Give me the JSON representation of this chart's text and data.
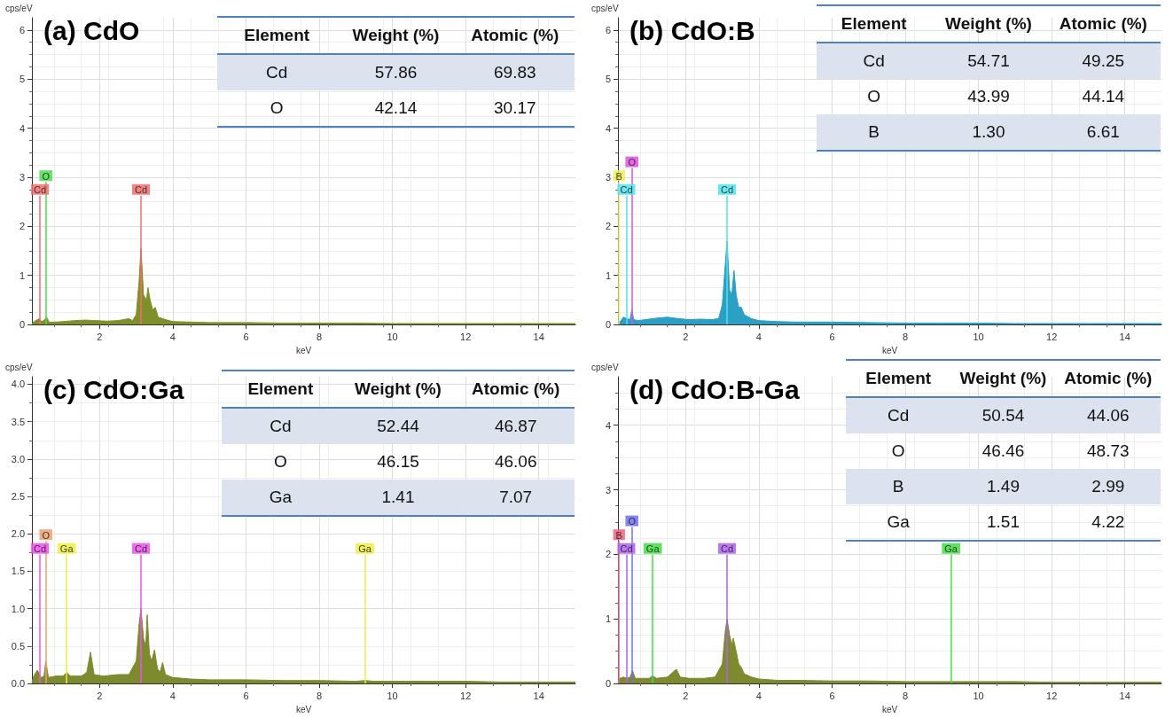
{
  "chart_data": [
    {
      "type": "area",
      "title": "(a) CdO",
      "xlabel": "keV",
      "ylabel": "cps/eV",
      "xlim": [
        0.15,
        15
      ],
      "xticks": [
        2,
        4,
        6,
        8,
        10,
        12,
        14
      ],
      "ylim": [
        0,
        6.25
      ],
      "yticks": [
        0,
        1,
        2,
        3,
        4,
        5,
        6
      ],
      "grid": true,
      "series": [
        {
          "color": "#7f8f2a",
          "x": [
            0.15,
            0.25,
            0.35,
            0.42,
            0.5,
            0.55,
            0.62,
            0.8,
            1.0,
            1.3,
            1.6,
            1.9,
            2.2,
            2.5,
            2.8,
            2.9,
            3.0,
            3.08,
            3.13,
            3.2,
            3.28,
            3.32,
            3.38,
            3.45,
            3.52,
            3.6,
            3.8,
            4.0,
            4.5,
            5,
            6,
            7,
            8,
            9,
            10,
            11,
            12,
            13,
            14,
            15
          ],
          "values": [
            0.02,
            0.08,
            0.12,
            0.06,
            0.1,
            0.15,
            0.05,
            0.05,
            0.06,
            0.08,
            0.09,
            0.08,
            0.07,
            0.08,
            0.12,
            0.08,
            0.2,
            0.9,
            1.55,
            0.6,
            0.5,
            0.75,
            0.5,
            0.3,
            0.35,
            0.15,
            0.1,
            0.06,
            0.05,
            0.04,
            0.04,
            0.03,
            0.03,
            0.03,
            0.02,
            0.02,
            0.02,
            0.02,
            0.02,
            0.02
          ]
        }
      ],
      "ref_lines": [
        {
          "axis": "x",
          "value": 0.37,
          "label": "Cd",
          "color": "#f26d6d"
        },
        {
          "axis": "x",
          "value": 0.53,
          "label": "O",
          "color": "#4cdc4c"
        },
        {
          "axis": "x",
          "value": 3.13,
          "label": "Cd",
          "color": "#f26d6d"
        }
      ],
      "annotations": [
        "Element",
        "Weight (%)",
        "Atomic (%)",
        "Cd",
        "57.86",
        "69.83",
        "O",
        "42.14",
        "30.17"
      ]
    },
    {
      "type": "area",
      "title": "(b) CdO:B",
      "xlabel": "keV",
      "ylabel": "cps/eV",
      "xlim": [
        0.15,
        15
      ],
      "xticks": [
        2,
        4,
        6,
        8,
        10,
        12,
        14
      ],
      "ylim": [
        0,
        6.25
      ],
      "yticks": [
        0,
        1,
        2,
        3,
        4,
        5,
        6
      ],
      "grid": true,
      "series": [
        {
          "color": "#2b9fc4",
          "x": [
            0.15,
            0.2,
            0.3,
            0.4,
            0.48,
            0.53,
            0.58,
            0.7,
            0.9,
            1.2,
            1.5,
            1.8,
            2.1,
            2.4,
            2.7,
            2.9,
            3.0,
            3.08,
            3.13,
            3.2,
            3.26,
            3.32,
            3.38,
            3.45,
            3.52,
            3.6,
            3.8,
            4.0,
            4.5,
            5,
            6,
            7,
            8,
            9,
            10,
            11,
            12,
            13,
            14,
            15
          ],
          "values": [
            0.02,
            0.05,
            0.15,
            0.12,
            0.1,
            0.3,
            0.1,
            0.08,
            0.1,
            0.13,
            0.15,
            0.12,
            0.1,
            0.11,
            0.1,
            0.12,
            0.4,
            1.2,
            1.7,
            0.7,
            0.6,
            1.1,
            0.6,
            0.35,
            0.35,
            0.2,
            0.12,
            0.08,
            0.06,
            0.05,
            0.05,
            0.04,
            0.03,
            0.03,
            0.03,
            0.02,
            0.02,
            0.02,
            0.02,
            0.02
          ]
        }
      ],
      "ref_lines": [
        {
          "axis": "x",
          "value": 0.38,
          "label": "Cd",
          "color": "#4fe4ec"
        },
        {
          "axis": "x",
          "value": 0.18,
          "label": "B",
          "color": "#eeee55"
        },
        {
          "axis": "x",
          "value": 0.53,
          "label": "O",
          "color": "#e050e0"
        },
        {
          "axis": "x",
          "value": 3.13,
          "label": "Cd",
          "color": "#4fe4ec"
        }
      ],
      "annotations": [
        "Element",
        "Weight (%)",
        "Atomic (%)",
        "Cd",
        "54.71",
        "49.25",
        "O",
        "43.99",
        "44.14",
        "B",
        "1.30",
        "6.61"
      ]
    },
    {
      "type": "area",
      "title": "(c) CdO:Ga",
      "xlabel": "keV",
      "ylabel": "cps/eV",
      "xlim": [
        0.15,
        15
      ],
      "xticks": [
        2,
        4,
        6,
        8,
        10,
        12,
        14
      ],
      "ylim": [
        0,
        4.1
      ],
      "yticks": [
        {
          "value": 0,
          "label": "0.0"
        },
        {
          "value": 0.5,
          "label": "0.5"
        },
        {
          "value": 1,
          "label": "1.0"
        },
        {
          "value": 1.5,
          "label": "1.5"
        },
        {
          "value": 2,
          "label": "2.0"
        },
        {
          "value": 2.5,
          "label": "2.5"
        },
        {
          "value": 3,
          "label": "3.0"
        },
        {
          "value": 3.5,
          "label": "3.5"
        },
        {
          "value": 4,
          "label": "4.0"
        }
      ],
      "grid": true,
      "series": [
        {
          "color": "#7d8a2e",
          "x": [
            0.15,
            0.2,
            0.3,
            0.4,
            0.48,
            0.53,
            0.6,
            0.8,
            1.0,
            1.1,
            1.2,
            1.5,
            1.65,
            1.75,
            1.85,
            2.1,
            2.5,
            2.8,
            3.0,
            3.08,
            3.13,
            3.2,
            3.26,
            3.3,
            3.36,
            3.42,
            3.5,
            3.58,
            3.65,
            3.72,
            3.8,
            4.0,
            4.5,
            5,
            6,
            7,
            8,
            9,
            9.25,
            9.5,
            10,
            11,
            12,
            13,
            14,
            15
          ],
          "values": [
            0.02,
            0.1,
            0.18,
            0.08,
            0.1,
            0.3,
            0.08,
            0.1,
            0.1,
            0.15,
            0.1,
            0.1,
            0.15,
            0.42,
            0.12,
            0.1,
            0.12,
            0.12,
            0.3,
            0.8,
            1.0,
            0.6,
            0.5,
            0.92,
            0.4,
            0.3,
            0.45,
            0.2,
            0.15,
            0.28,
            0.12,
            0.08,
            0.06,
            0.05,
            0.05,
            0.04,
            0.04,
            0.03,
            0.04,
            0.03,
            0.03,
            0.03,
            0.03,
            0.02,
            0.02,
            0.02
          ]
        }
      ],
      "ref_lines": [
        {
          "axis": "x",
          "value": 0.37,
          "label": "Cd",
          "color": "#ee50ee"
        },
        {
          "axis": "x",
          "value": 0.53,
          "label": "O",
          "color": "#f0a070"
        },
        {
          "axis": "x",
          "value": 1.1,
          "label": "Ga",
          "color": "#eeee40"
        },
        {
          "axis": "x",
          "value": 3.13,
          "label": "Cd",
          "color": "#ee50ee"
        },
        {
          "axis": "x",
          "value": 9.25,
          "label": "Ga",
          "color": "#eeee40"
        }
      ],
      "annotations": [
        "Element",
        "Weight (%)",
        "Atomic (%)",
        "Cd",
        "52.44",
        "46.87",
        "O",
        "46.15",
        "46.06",
        "Ga",
        "1.41",
        "7.07"
      ]
    },
    {
      "type": "area",
      "title": "(d) CdO:B-Ga",
      "xlabel": "keV",
      "ylabel": "cps/eV",
      "xlim": [
        0.15,
        15
      ],
      "xticks": [
        2,
        4,
        6,
        8,
        10,
        12,
        14
      ],
      "ylim": [
        0,
        4.75
      ],
      "yticks": [
        0,
        1,
        2,
        3,
        4
      ],
      "grid": true,
      "series": [
        {
          "color": "#7d8a2e",
          "x": [
            0.15,
            0.2,
            0.3,
            0.4,
            0.48,
            0.55,
            0.62,
            0.8,
            1.0,
            1.1,
            1.2,
            1.5,
            1.7,
            1.75,
            1.85,
            2.1,
            2.5,
            2.8,
            3.0,
            3.08,
            3.13,
            3.2,
            3.26,
            3.3,
            3.38,
            3.45,
            3.52,
            3.6,
            3.8,
            4.0,
            4.5,
            5,
            6,
            7,
            8,
            9,
            10,
            11,
            12,
            13,
            14,
            15
          ],
          "values": [
            0.02,
            0.08,
            0.1,
            0.08,
            0.1,
            0.2,
            0.08,
            0.08,
            0.08,
            0.12,
            0.08,
            0.1,
            0.2,
            0.22,
            0.1,
            0.08,
            0.08,
            0.1,
            0.3,
            0.8,
            1.0,
            0.75,
            0.6,
            0.7,
            0.5,
            0.3,
            0.25,
            0.15,
            0.1,
            0.07,
            0.05,
            0.05,
            0.04,
            0.04,
            0.03,
            0.03,
            0.03,
            0.03,
            0.02,
            0.02,
            0.02,
            0.02
          ]
        }
      ],
      "ref_lines": [
        {
          "axis": "x",
          "value": 0.38,
          "label": "Cd",
          "color": "#b060f0"
        },
        {
          "axis": "x",
          "value": 0.18,
          "label": "B",
          "color": "#f06080"
        },
        {
          "axis": "x",
          "value": 0.53,
          "label": "O",
          "color": "#7070f0"
        },
        {
          "axis": "x",
          "value": 1.1,
          "label": "Ga",
          "color": "#40e040"
        },
        {
          "axis": "x",
          "value": 3.13,
          "label": "Cd",
          "color": "#b060f0"
        },
        {
          "axis": "x",
          "value": 9.25,
          "label": "Ga",
          "color": "#40e040"
        }
      ],
      "annotations": [
        "Element",
        "Weight (%)",
        "Atomic (%)",
        "Cd",
        "50.54",
        "44.06",
        "O",
        "46.46",
        "48.73",
        "B",
        "1.49",
        "2.99",
        "Ga",
        "1.51",
        "4.22"
      ]
    }
  ]
}
